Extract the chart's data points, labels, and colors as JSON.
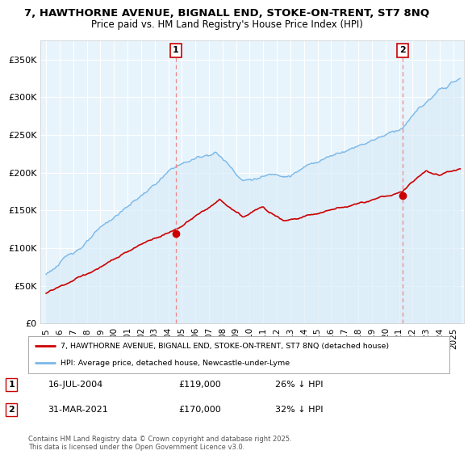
{
  "title_line1": "7, HAWTHORNE AVENUE, BIGNALL END, STOKE-ON-TRENT, ST7 8NQ",
  "title_line2": "Price paid vs. HM Land Registry's House Price Index (HPI)",
  "ylabel_ticks": [
    "£0",
    "£50K",
    "£100K",
    "£150K",
    "£200K",
    "£250K",
    "£300K",
    "£350K"
  ],
  "ytick_values": [
    0,
    50000,
    100000,
    150000,
    200000,
    250000,
    300000,
    350000
  ],
  "ylim": [
    0,
    375000
  ],
  "hpi_color": "#7ab8e8",
  "hpi_fill_color": "#d6eaf8",
  "price_color": "#cc0000",
  "dashed_line_color": "#ee8888",
  "marker1_x": 2004.54,
  "marker2_x": 2021.25,
  "legend_line1": "7, HAWTHORNE AVENUE, BIGNALL END, STOKE-ON-TRENT, ST7 8NQ (detached house)",
  "legend_line2": "HPI: Average price, detached house, Newcastle-under-Lyme",
  "annotation1_num": "1",
  "annotation1_date": "16-JUL-2004",
  "annotation1_price": "£119,000",
  "annotation1_hpi": "26% ↓ HPI",
  "annotation2_num": "2",
  "annotation2_date": "31-MAR-2021",
  "annotation2_price": "£170,000",
  "annotation2_hpi": "32% ↓ HPI",
  "footer": "Contains HM Land Registry data © Crown copyright and database right 2025.\nThis data is licensed under the Open Government Licence v3.0.",
  "background_color": "#ffffff",
  "plot_bg_color": "#e8f4fc",
  "grid_color": "#ffffff"
}
